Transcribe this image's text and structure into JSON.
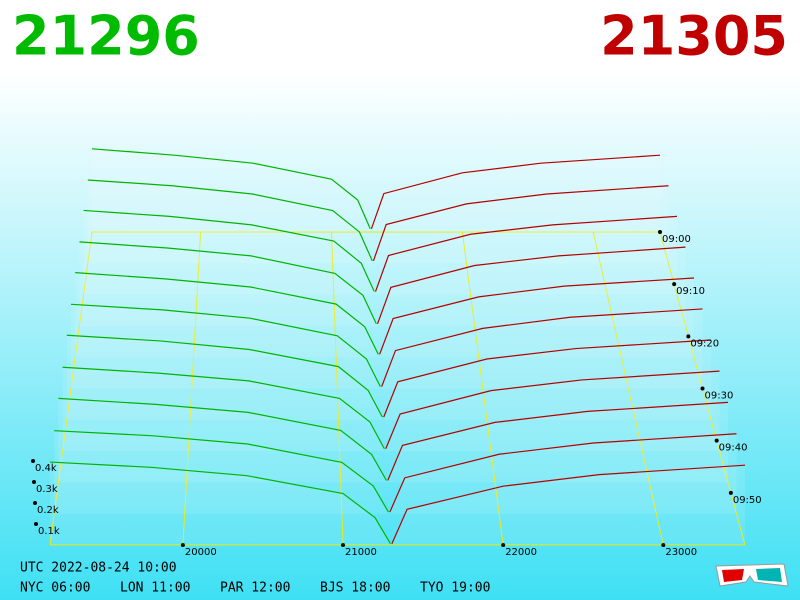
{
  "chart_data": {
    "type": "depth3d",
    "bid_price": 21296,
    "ask_price": 21305,
    "bid_color": "#00b400",
    "ask_color": "#b40000",
    "xlim": [
      19170,
      23510
    ],
    "xticks": [
      20000,
      21000,
      22000,
      23000
    ],
    "ylim": [
      0,
      500
    ],
    "yticks": [
      {
        "value": 100,
        "label": "0.1k"
      },
      {
        "value": 200,
        "label": "0.2k"
      },
      {
        "value": 300,
        "label": "0.3k"
      },
      {
        "value": 400,
        "label": "0.4k"
      }
    ],
    "tlim": [
      540,
      600
    ],
    "tticks": [
      {
        "value": 540,
        "label": "09:00"
      },
      {
        "value": 550,
        "label": "09:10"
      },
      {
        "value": 560,
        "label": "09:20"
      },
      {
        "value": 570,
        "label": "09:30"
      },
      {
        "value": 580,
        "label": "09:40"
      },
      {
        "value": 590,
        "label": "09:50"
      }
    ],
    "bid_levels": [
      19170,
      19800,
      20400,
      21000,
      21200,
      21296
    ],
    "ask_levels": [
      21305,
      21400,
      22000,
      22600,
      23510
    ],
    "snapshots": [
      {
        "time": 540,
        "bids": [
          520,
          480,
          430,
          330,
          200,
          20
        ],
        "asks": [
          20,
          240,
          370,
          430,
          480
        ]
      },
      {
        "time": 546,
        "bids": [
          505,
          470,
          420,
          320,
          190,
          15
        ],
        "asks": [
          15,
          235,
          360,
          420,
          470
        ]
      },
      {
        "time": 552,
        "bids": [
          495,
          460,
          410,
          315,
          185,
          18
        ],
        "asks": [
          18,
          230,
          355,
          410,
          460
        ]
      },
      {
        "time": 558,
        "bids": [
          480,
          445,
          400,
          300,
          175,
          12
        ],
        "asks": [
          12,
          220,
          345,
          400,
          450
        ]
      },
      {
        "time": 564,
        "bids": [
          470,
          435,
          390,
          295,
          170,
          16
        ],
        "asks": [
          16,
          215,
          335,
          395,
          440
        ]
      },
      {
        "time": 570,
        "bids": [
          455,
          425,
          380,
          285,
          160,
          10
        ],
        "asks": [
          10,
          205,
          325,
          385,
          430
        ]
      },
      {
        "time": 576,
        "bids": [
          445,
          415,
          370,
          280,
          155,
          14
        ],
        "asks": [
          14,
          200,
          320,
          375,
          420
        ]
      },
      {
        "time": 582,
        "bids": [
          430,
          400,
          360,
          270,
          150,
          12
        ],
        "asks": [
          12,
          190,
          310,
          365,
          410
        ]
      },
      {
        "time": 588,
        "bids": [
          420,
          390,
          350,
          260,
          140,
          10
        ],
        "asks": [
          10,
          185,
          300,
          355,
          400
        ]
      },
      {
        "time": 594,
        "bids": [
          405,
          380,
          340,
          250,
          135,
          8
        ],
        "asks": [
          8,
          175,
          290,
          345,
          390
        ]
      },
      {
        "time": 600,
        "bids": [
          395,
          370,
          330,
          245,
          130,
          6
        ],
        "asks": [
          6,
          170,
          280,
          335,
          380
        ]
      }
    ],
    "utc": "UTC 2022-08-24 10:00",
    "cities": [
      "NYC 06:00",
      "LON 11:00",
      "PAR 12:00",
      "BJS 18:00",
      "TYO 19:00"
    ]
  }
}
